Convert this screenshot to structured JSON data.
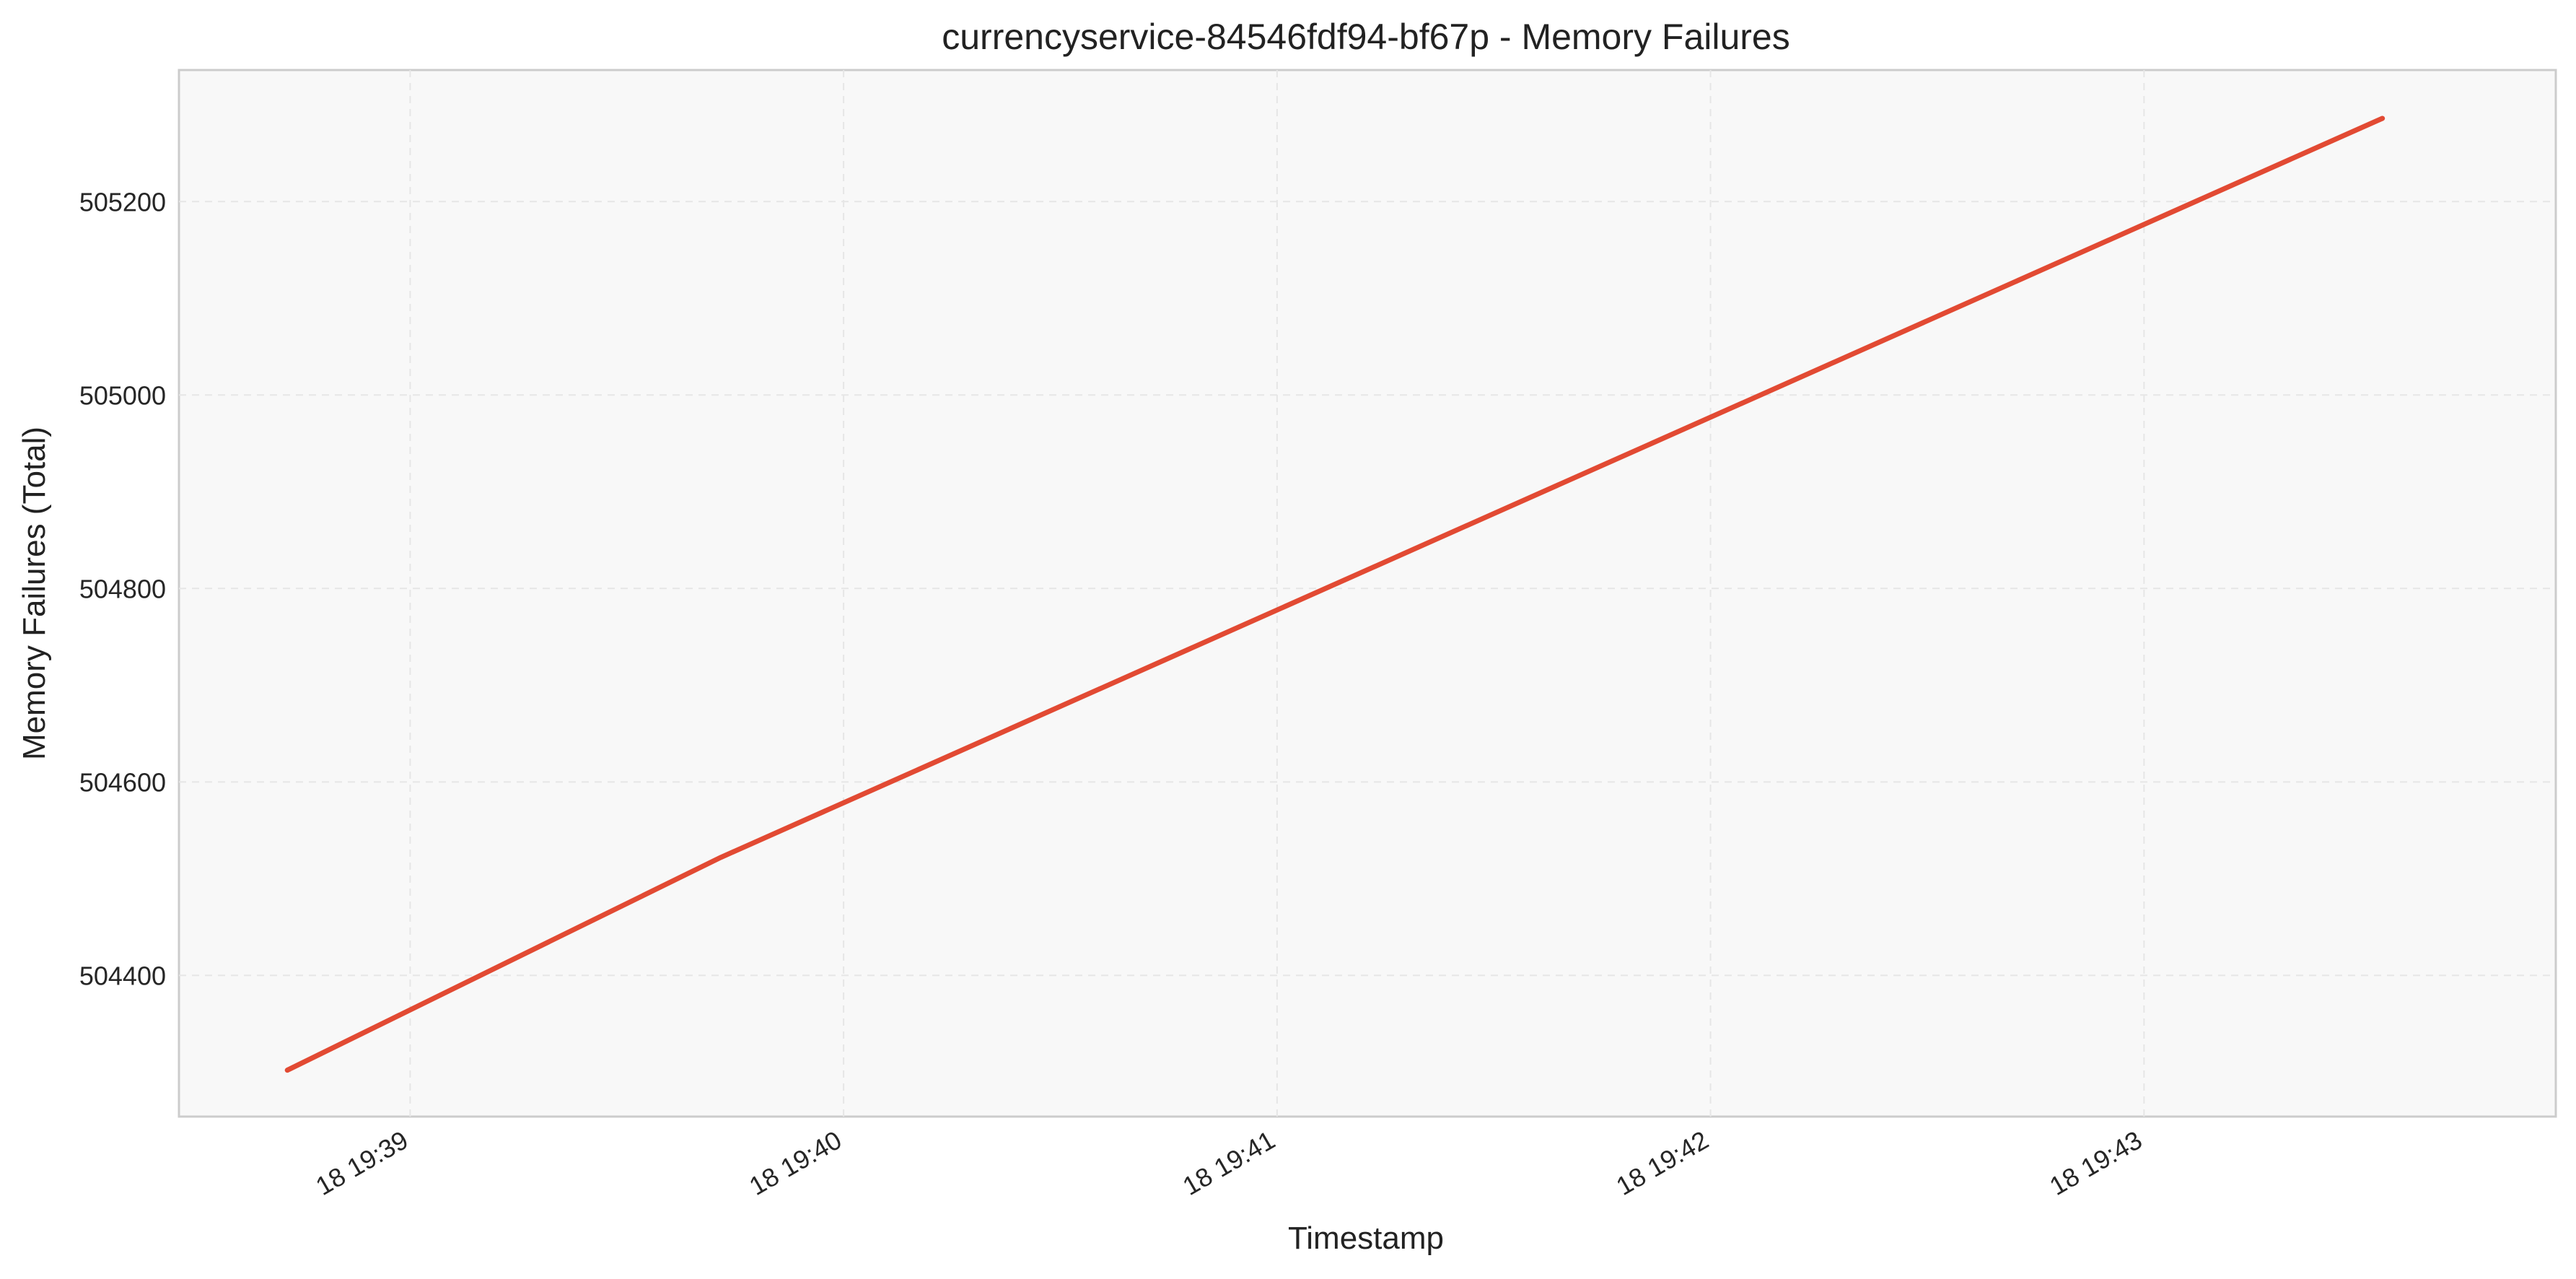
{
  "chart_data": {
    "type": "line",
    "title": "currencyservice-84546fdf94-bf67p - Memory Failures",
    "xlabel": "Timestamp",
    "ylabel": "Memory Failures (Total)",
    "x_tick_labels": [
      "18 19:39",
      "18 19:40",
      "18 19:41",
      "18 19:42",
      "18 19:43"
    ],
    "y_tick_labels": [
      "504400",
      "504600",
      "504800",
      "505000",
      "505200"
    ],
    "y_ticks": [
      504400,
      504600,
      504800,
      505000,
      505200
    ],
    "x_ticks": [
      "19:39:00",
      "19:40:00",
      "19:41:00",
      "19:42:00",
      "19:43:00"
    ],
    "xlim": [
      "19:38:28",
      "19:43:57"
    ],
    "ylim": [
      504254,
      505336
    ],
    "grid": true,
    "series": [
      {
        "color": "#e24a33",
        "x": [
          "19:38:43",
          "19:39:43",
          "19:43:33"
        ],
        "y": [
          504302,
          504522,
          505286
        ]
      }
    ]
  }
}
